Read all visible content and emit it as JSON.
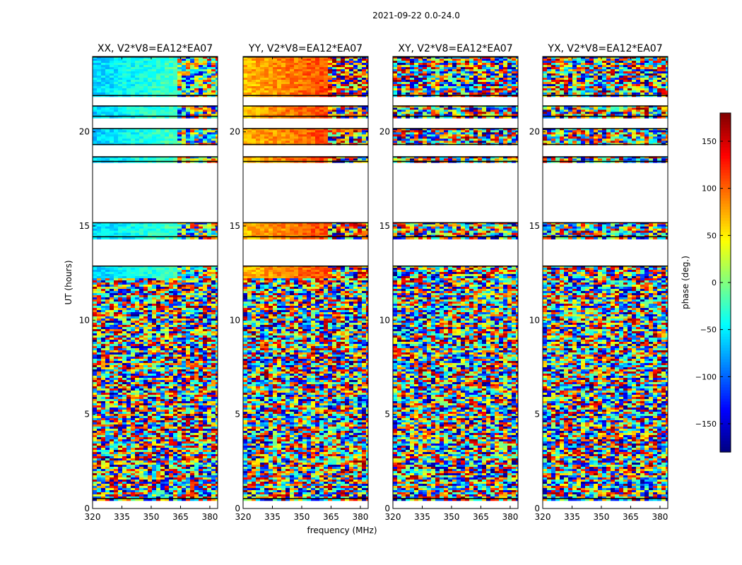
{
  "figure": {
    "suptitle": "2021-09-22 0.0-24.0",
    "xlabel": "frequency (MHz)",
    "ylabel": "UT (hours)"
  },
  "chart_data": {
    "type": "heatmap",
    "x": {
      "range": [
        320,
        384
      ],
      "ticks": [
        320,
        335,
        350,
        365,
        380
      ],
      "label": "frequency (MHz)"
    },
    "y": {
      "range": [
        0,
        24
      ],
      "ticks": [
        0,
        5,
        10,
        15,
        20
      ],
      "label": "UT (hours)"
    },
    "panels": [
      {
        "title": "XX, V2*V8=EA12*EA07",
        "polarization": "XX"
      },
      {
        "title": "YY, V2*V8=EA12*EA07",
        "polarization": "YY"
      },
      {
        "title": "XY, V2*V8=EA12*EA07",
        "polarization": "XY"
      },
      {
        "title": "YX, V2*V8=EA12*EA07",
        "polarization": "YX"
      }
    ],
    "data_coverage_ut": [
      [
        0.5,
        12.9
      ],
      [
        14.4,
        15.2
      ],
      [
        18.4,
        18.7
      ],
      [
        19.3,
        20.2
      ],
      [
        20.8,
        21.4
      ],
      [
        21.9,
        24.0
      ]
    ],
    "colorbar": {
      "label": "phase (deg.)",
      "range": [
        -180,
        180
      ],
      "ticks": [
        -150,
        -100,
        -50,
        0,
        50,
        100,
        150
      ],
      "tick_labels": [
        "−150",
        "−100",
        "−50",
        "0",
        "50",
        "100",
        "150"
      ],
      "colormap": "jet"
    }
  }
}
